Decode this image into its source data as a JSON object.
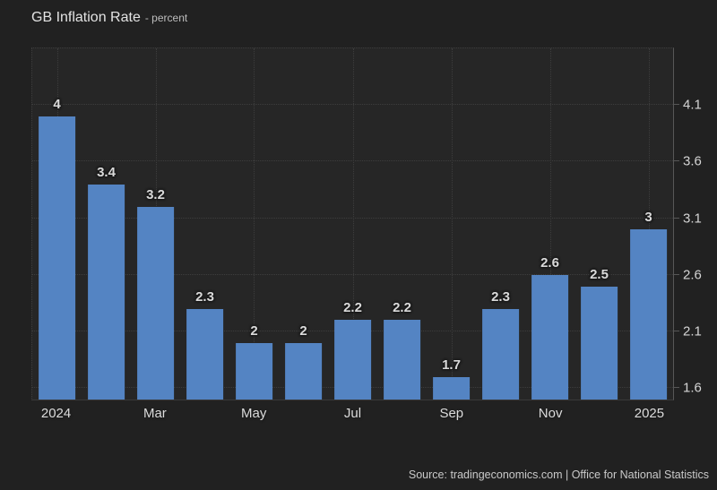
{
  "header": {
    "title": "GB Inflation Rate",
    "subtitle": "- percent"
  },
  "footer": {
    "source": "Source: tradingeconomics.com | Office for National Statistics"
  },
  "colors": {
    "bar": "#5484c3",
    "background": "#212121",
    "plot_background": "#262626",
    "grid": "#3d3d3d",
    "axis": "#575757"
  },
  "chart_data": {
    "type": "bar",
    "title": "GB Inflation Rate",
    "subtitle": "percent",
    "values": [
      4,
      3.4,
      3.2,
      2.3,
      2,
      2,
      2.2,
      2.2,
      1.7,
      2.3,
      2.6,
      2.5,
      3
    ],
    "bar_labels": [
      "4",
      "3.4",
      "3.2",
      "2.3",
      "2",
      "2",
      "2.2",
      "2.2",
      "1.7",
      "2.3",
      "2.6",
      "2.5",
      "3"
    ],
    "x_ticks": [
      {
        "index": 0,
        "label": "2024"
      },
      {
        "index": 2,
        "label": "Mar"
      },
      {
        "index": 4,
        "label": "May"
      },
      {
        "index": 6,
        "label": "Jul"
      },
      {
        "index": 8,
        "label": "Sep"
      },
      {
        "index": 10,
        "label": "Nov"
      },
      {
        "index": 12,
        "label": "2025"
      }
    ],
    "y_ticks": [
      "4.1",
      "3.6",
      "3.1",
      "2.6",
      "2.1",
      "1.6"
    ],
    "ylim": [
      1.5,
      4.6
    ],
    "grid": true,
    "legend": false,
    "source": "tradingeconomics.com | Office for National Statistics"
  }
}
